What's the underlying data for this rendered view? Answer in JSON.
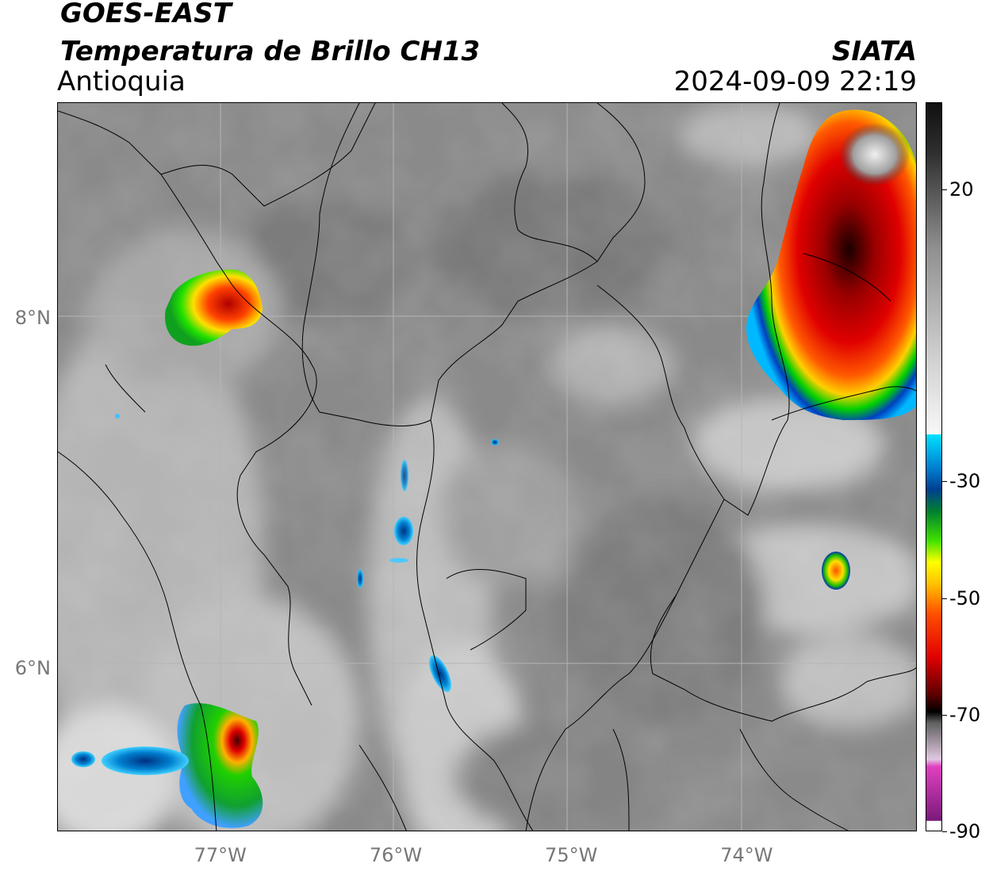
{
  "header": {
    "satellite": "GOES-EAST",
    "product": "Temperatura de Brillo CH13",
    "region": "Antioquia",
    "agency": "SIATA",
    "datetime": "2024-09-09 22:19"
  },
  "axes": {
    "lat_ticks": [
      {
        "label": "8°N",
        "value": 8
      },
      {
        "label": "6°N",
        "value": 6
      }
    ],
    "lon_ticks": [
      {
        "label": "77°W",
        "value": -77
      },
      {
        "label": "76°W",
        "value": -76
      },
      {
        "label": "75°W",
        "value": -75
      },
      {
        "label": "74°W",
        "value": -74
      }
    ],
    "lat_range": [
      5.07,
      9.23
    ],
    "lon_range": [
      -77.93,
      -73.03
    ],
    "gridlines": true
  },
  "colorbar": {
    "ticks": [
      {
        "label": "20",
        "value": 20
      },
      {
        "label": "-30",
        "value": -30
      },
      {
        "label": "-50",
        "value": -50
      },
      {
        "label": "-70",
        "value": -70
      },
      {
        "label": "-90",
        "value": -90
      }
    ],
    "range": [
      -90,
      35
    ]
  },
  "colors": {
    "frame": "#000000",
    "tick_text": "#777777",
    "gridline": "#b5b5b5"
  }
}
